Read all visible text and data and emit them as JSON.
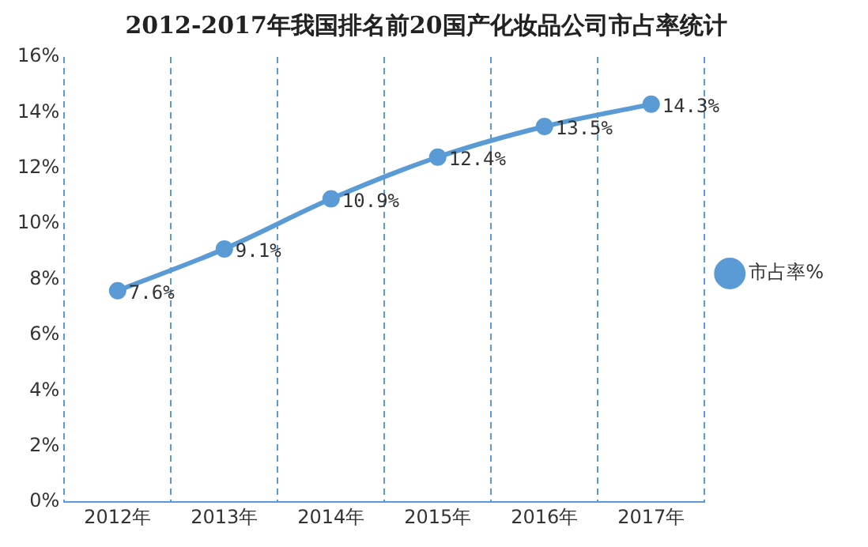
{
  "chart_data": {
    "type": "line",
    "title": "2012-2017年我国排名前20国产化妆品公司市占率统计",
    "categories": [
      "2012年",
      "2013年",
      "2014年",
      "2015年",
      "2016年",
      "2017年"
    ],
    "series": [
      {
        "name": "市占率%",
        "color": "#5b9bd5",
        "values": [
          7.6,
          9.1,
          10.9,
          12.4,
          13.5,
          14.3
        ],
        "value_labels": [
          "7.6%",
          "9.1%",
          "10.9%",
          "12.4%",
          "13.5%",
          "14.3%"
        ]
      }
    ],
    "ylim": [
      0,
      16
    ],
    "yticks": [
      {
        "value": 0,
        "label": "0%"
      },
      {
        "value": 2,
        "label": "2%"
      },
      {
        "value": 4,
        "label": "4%"
      },
      {
        "value": 6,
        "label": "6%"
      },
      {
        "value": 8,
        "label": "8%"
      },
      {
        "value": 10,
        "label": "10%"
      },
      {
        "value": 12,
        "label": "12%"
      },
      {
        "value": 14,
        "label": "14%"
      },
      {
        "value": 16,
        "label": "16%"
      }
    ],
    "grid": "x",
    "legend": "right",
    "marker": "circle",
    "line_style": "solid"
  }
}
